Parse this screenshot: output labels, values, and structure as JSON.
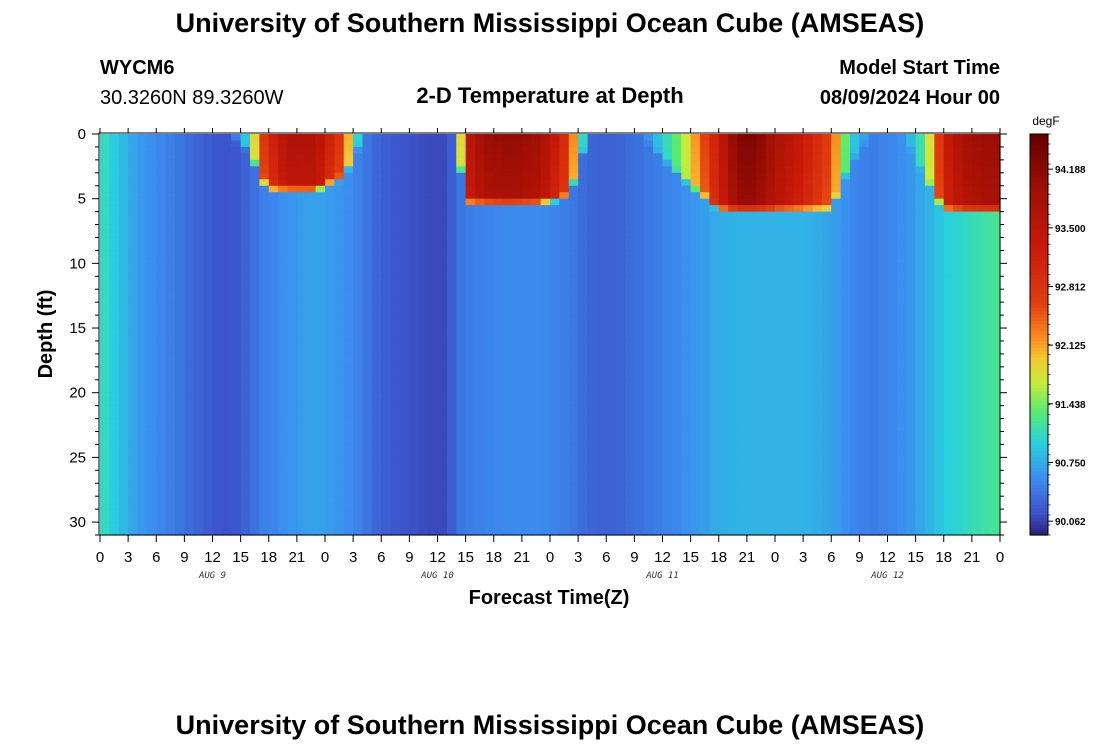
{
  "header": {
    "title": "University of Southern Mississippi Ocean Cube (AMSEAS)",
    "station": "WYCM6",
    "coords": "30.3260N  89.3260W",
    "plot_title": "2-D Temperature at Depth",
    "start_label": "Model Start Time",
    "start_value": "08/09/2024 Hour 00"
  },
  "footer": {
    "title": "University of Southern Mississippi Ocean Cube (AMSEAS)"
  },
  "chart_data": {
    "type": "heatmap",
    "title": "2-D Temperature at Depth",
    "xlabel": "Forecast Time(Z)",
    "ylabel": "Depth (ft)",
    "x_range_hours": [
      0,
      96
    ],
    "ylim": [
      0,
      31
    ],
    "y_inverted": true,
    "x_tick_labels": [
      "0",
      "3",
      "6",
      "9",
      "12",
      "15",
      "18",
      "21",
      "0",
      "3",
      "6",
      "9",
      "12",
      "15",
      "18",
      "21",
      "0",
      "3",
      "6",
      "9",
      "12",
      "15",
      "18",
      "21",
      "0",
      "3",
      "6",
      "9",
      "12",
      "15",
      "18",
      "21",
      "0"
    ],
    "date_labels": [
      "AUG 9",
      "AUG 10",
      "AUG 11",
      "AUG 12"
    ],
    "y_ticks": [
      0,
      5,
      10,
      15,
      20,
      25,
      30
    ],
    "colorbar": {
      "unit": "degF",
      "tick_labels": [
        "94.188",
        "93.500",
        "92.812",
        "92.125",
        "91.438",
        "90.750",
        "90.062"
      ],
      "tick_values": [
        94.188,
        93.5,
        92.812,
        92.125,
        91.438,
        90.75,
        90.062
      ],
      "range": [
        89.9,
        94.6
      ]
    },
    "column_profile": {
      "note_units": "hours from model start; degF",
      "hours": [
        0,
        1,
        2,
        4,
        7,
        10,
        12,
        14,
        16,
        17,
        18,
        20,
        23,
        26,
        28,
        30,
        33,
        35,
        37,
        38,
        39,
        41,
        44,
        47,
        50,
        52,
        54,
        56,
        58,
        62,
        66,
        68,
        70,
        72,
        75,
        78,
        80,
        82,
        84,
        86,
        88,
        90,
        92,
        94,
        96
      ],
      "deep_temp": [
        91.15,
        91.0,
        90.9,
        90.65,
        90.5,
        90.3,
        90.2,
        90.15,
        90.3,
        90.45,
        90.5,
        90.6,
        90.7,
        90.6,
        90.45,
        90.25,
        90.15,
        90.1,
        90.1,
        90.35,
        90.45,
        90.5,
        90.55,
        90.55,
        90.45,
        90.3,
        90.25,
        90.3,
        90.4,
        90.55,
        90.75,
        90.8,
        90.8,
        90.8,
        90.8,
        90.7,
        90.55,
        90.45,
        90.5,
        90.6,
        90.75,
        90.95,
        91.05,
        91.15,
        91.25
      ],
      "surface_temp": [
        91.15,
        91.0,
        90.9,
        90.65,
        90.5,
        90.3,
        90.2,
        90.2,
        91.2,
        92.5,
        93.0,
        93.7,
        93.7,
        92.6,
        90.5,
        90.25,
        90.15,
        90.1,
        89.9,
        90.3,
        93.4,
        94.0,
        94.1,
        93.9,
        92.8,
        90.5,
        90.3,
        90.4,
        90.5,
        91.5,
        93.3,
        94.3,
        94.3,
        93.8,
        93.3,
        92.6,
        91.0,
        90.6,
        90.6,
        90.7,
        91.3,
        93.2,
        93.8,
        94.0,
        94.0
      ],
      "warm_layer_depth_ft": [
        0,
        0,
        0,
        0,
        0,
        0,
        0,
        0,
        1,
        3,
        4,
        4,
        4,
        3,
        0,
        0,
        0,
        0,
        0,
        0,
        5,
        5,
        5,
        5,
        4.5,
        0,
        0,
        0,
        0,
        3,
        5.5,
        5.5,
        5.5,
        5.5,
        5.5,
        5.5,
        2,
        0,
        0,
        0,
        3,
        5.5,
        5.5,
        5.5,
        5.5
      ]
    }
  }
}
